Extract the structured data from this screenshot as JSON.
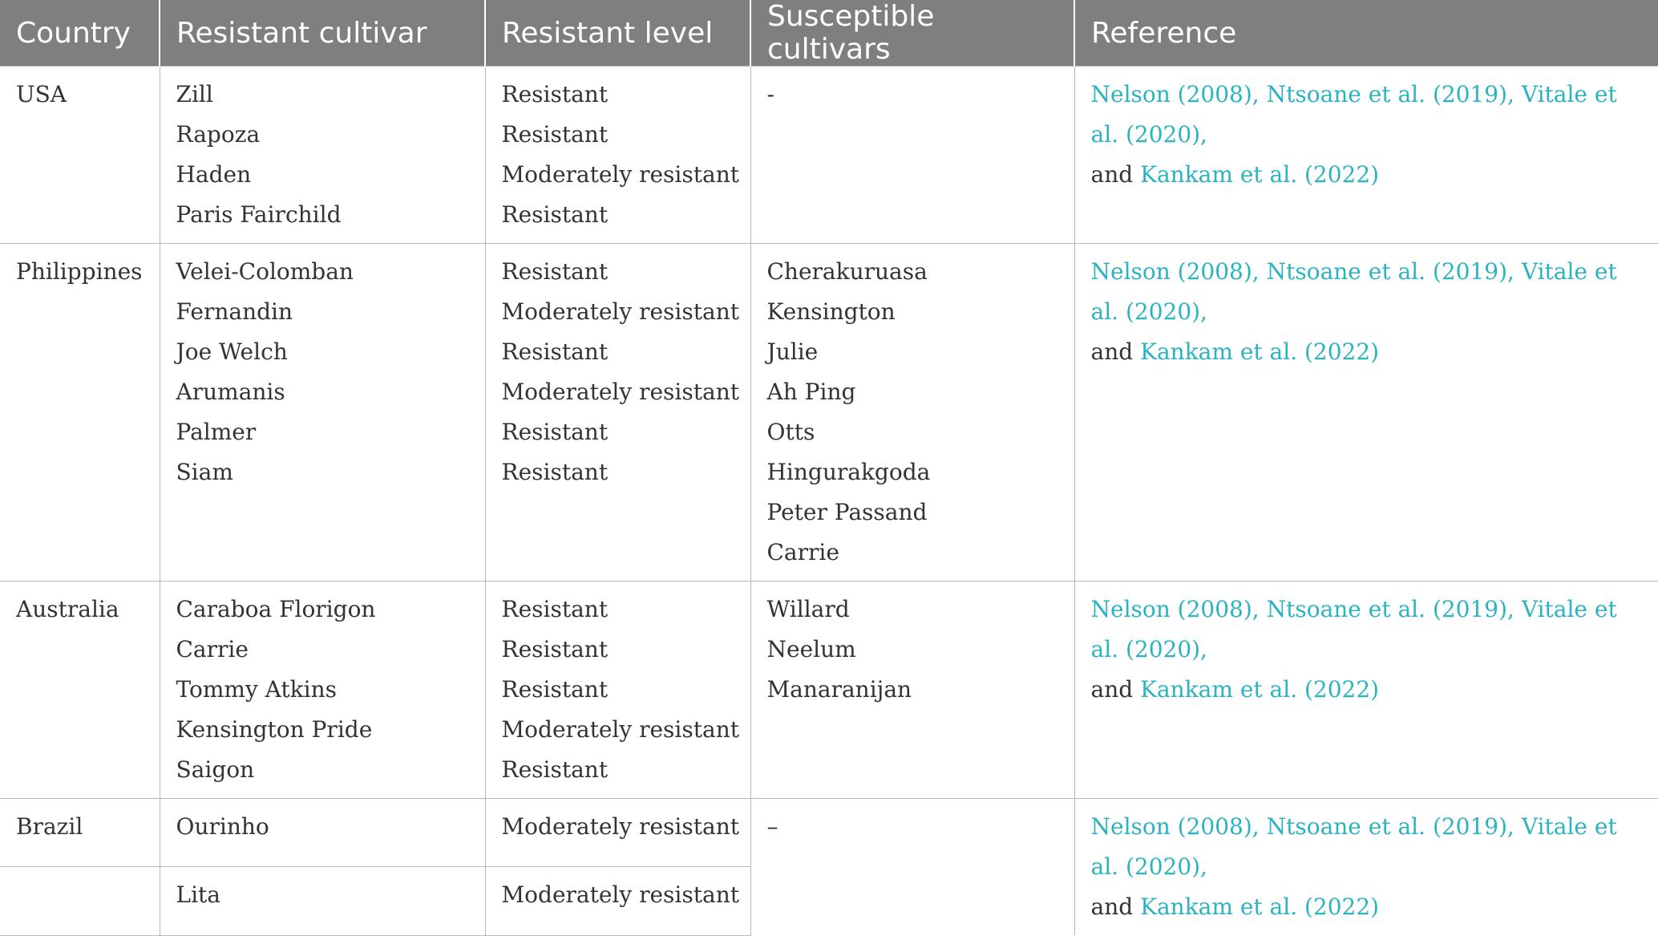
{
  "headers": [
    "Country",
    "Resistant cultivar",
    "Resistant level",
    "Susceptible cultivars",
    "Reference"
  ],
  "reference": {
    "cite1": "Nelson (2008), Ntsoane et al. (2019), Vitale et al. (2020),",
    "and": "and ",
    "cite2": "Kankam et al. (2022)"
  },
  "rows": [
    {
      "country": "USA",
      "resistant": [
        "Zill",
        "Rapoza",
        "Haden",
        "Paris Fairchild"
      ],
      "levels": [
        "Resistant",
        "Resistant",
        "Moderately resistant",
        "Resistant"
      ],
      "susceptible": [
        "-"
      ]
    },
    {
      "country": "Philippines",
      "resistant": [
        "Velei-Colomban",
        "Fernandin",
        "Joe Welch",
        "Arumanis",
        "Palmer",
        "Siam"
      ],
      "levels": [
        "Resistant",
        "Moderately resistant",
        "Resistant",
        "Moderately resistant",
        "Resistant",
        "Resistant"
      ],
      "susceptible": [
        "Cherakuruasa",
        "Kensington",
        "Julie",
        "Ah Ping",
        "Otts",
        "Hingurakgoda",
        "Peter Passand",
        "Carrie"
      ]
    },
    {
      "country": "Australia",
      "resistant": [
        "Caraboa Florigon",
        "Carrie",
        "Tommy Atkins",
        "Kensington Pride",
        "Saigon"
      ],
      "levels": [
        "Resistant",
        "Resistant",
        "Resistant",
        "Moderately resistant",
        "Resistant"
      ],
      "susceptible": [
        "Willard",
        "Neelum",
        "Manaranijan"
      ]
    },
    {
      "country": "Brazil",
      "sub": [
        {
          "resistant": "Ourinho",
          "level": "Moderately resistant"
        },
        {
          "resistant": "Lita",
          "level": "Moderately resistant"
        }
      ],
      "susceptible": [
        "–"
      ]
    }
  ]
}
